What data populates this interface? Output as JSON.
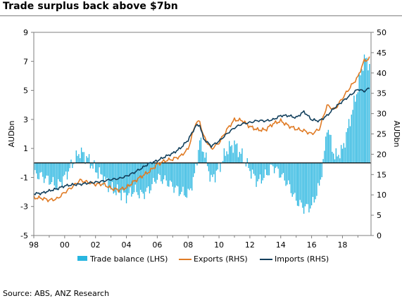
{
  "title": "Trade surplus back above $7bn",
  "source": "Source: ABS, ANZ Research",
  "colors": {
    "trade_balance": "#29b6e0",
    "exports": "#e07b25",
    "imports": "#123f5c",
    "zero_line": "#000000",
    "frame": "#7f7f7f"
  },
  "chart_data": {
    "type": "bar+line",
    "xlabel": "",
    "ylabel_left": "AUDbn",
    "ylabel_right": "AUDbn",
    "x_range": [
      1998,
      2019.75
    ],
    "x_tick_values": [
      1998,
      2000,
      2002,
      2004,
      2006,
      2008,
      2010,
      2012,
      2014,
      2016,
      2018
    ],
    "x_tick_labels": [
      "98",
      "00",
      "02",
      "04",
      "06",
      "08",
      "10",
      "12",
      "14",
      "16",
      "18"
    ],
    "ylim_left": [
      -5,
      9
    ],
    "yticks_left": [
      -5,
      -3,
      -1,
      1,
      3,
      5,
      7,
      9
    ],
    "ytick_labels_left": [
      "-5",
      "-3",
      "-1",
      "1",
      "3",
      "5",
      "7",
      "9"
    ],
    "ylim_right": [
      0,
      50
    ],
    "yticks_right": [
      0,
      5,
      10,
      15,
      20,
      25,
      30,
      35,
      40,
      45,
      50
    ],
    "ytick_labels_right": [
      "0",
      "5",
      "10",
      "15",
      "20",
      "25",
      "30",
      "35",
      "40",
      "45",
      "50"
    ],
    "grid": false,
    "legend_position": "bottom",
    "series": [
      {
        "name": "Trade balance (LHS)",
        "type": "bar",
        "axis": "left",
        "frequency": "monthly",
        "anchors": [
          [
            1998.0,
            -0.8
          ],
          [
            1998.5,
            -0.9
          ],
          [
            1999.0,
            -1.2
          ],
          [
            1999.5,
            -1.6
          ],
          [
            2000.0,
            -1.0
          ],
          [
            2000.6,
            0.1
          ],
          [
            2001.0,
            0.8
          ],
          [
            2001.5,
            0.3
          ],
          [
            2002.0,
            -0.5
          ],
          [
            2002.5,
            -1.0
          ],
          [
            2003.0,
            -1.8
          ],
          [
            2003.5,
            -2.0
          ],
          [
            2004.0,
            -2.3
          ],
          [
            2004.5,
            -1.9
          ],
          [
            2005.0,
            -2.2
          ],
          [
            2005.5,
            -1.8
          ],
          [
            2006.0,
            -1.0
          ],
          [
            2006.5,
            -1.2
          ],
          [
            2007.0,
            -1.6
          ],
          [
            2007.5,
            -2.0
          ],
          [
            2008.0,
            -2.2
          ],
          [
            2008.4,
            -1.0
          ],
          [
            2008.75,
            1.5
          ],
          [
            2009.0,
            0.9
          ],
          [
            2009.5,
            -1.2
          ],
          [
            2010.0,
            -0.4
          ],
          [
            2010.5,
            0.9
          ],
          [
            2011.0,
            1.3
          ],
          [
            2011.5,
            0.5
          ],
          [
            2012.0,
            -0.5
          ],
          [
            2012.5,
            -1.3
          ],
          [
            2013.0,
            -0.9
          ],
          [
            2013.5,
            -0.2
          ],
          [
            2014.0,
            -0.8
          ],
          [
            2014.5,
            -1.5
          ],
          [
            2015.0,
            -2.6
          ],
          [
            2015.5,
            -3.1
          ],
          [
            2016.0,
            -3.0
          ],
          [
            2016.5,
            -1.6
          ],
          [
            2016.8,
            0.3
          ],
          [
            2017.0,
            2.6
          ],
          [
            2017.5,
            0.4
          ],
          [
            2018.0,
            0.9
          ],
          [
            2018.5,
            3.0
          ],
          [
            2019.0,
            5.2
          ],
          [
            2019.4,
            7.2
          ],
          [
            2019.75,
            6.8
          ]
        ],
        "values": []
      },
      {
        "name": "Exports (RHS)",
        "type": "line",
        "axis": "right",
        "frequency": "monthly",
        "anchors": [
          [
            1998.0,
            9.3
          ],
          [
            1998.5,
            9.2
          ],
          [
            1999.0,
            8.7
          ],
          [
            1999.5,
            9.0
          ],
          [
            2000.0,
            10.6
          ],
          [
            2000.5,
            12.0
          ],
          [
            2001.0,
            13.6
          ],
          [
            2001.5,
            13.1
          ],
          [
            2002.0,
            12.6
          ],
          [
            2002.5,
            12.7
          ],
          [
            2003.0,
            11.6
          ],
          [
            2003.5,
            11.2
          ],
          [
            2004.0,
            11.8
          ],
          [
            2004.5,
            13.3
          ],
          [
            2005.0,
            14.6
          ],
          [
            2005.5,
            15.8
          ],
          [
            2006.0,
            17.5
          ],
          [
            2006.5,
            18.4
          ],
          [
            2007.0,
            18.8
          ],
          [
            2007.5,
            19.5
          ],
          [
            2008.0,
            21.3
          ],
          [
            2008.5,
            27.8
          ],
          [
            2008.75,
            28.0
          ],
          [
            2009.0,
            24.5
          ],
          [
            2009.5,
            21.3
          ],
          [
            2010.0,
            22.8
          ],
          [
            2010.5,
            26.0
          ],
          [
            2011.0,
            28.5
          ],
          [
            2011.5,
            28.3
          ],
          [
            2012.0,
            26.8
          ],
          [
            2012.5,
            26.0
          ],
          [
            2013.0,
            26.0
          ],
          [
            2013.5,
            27.5
          ],
          [
            2014.0,
            28.2
          ],
          [
            2014.5,
            27.0
          ],
          [
            2015.0,
            26.2
          ],
          [
            2015.5,
            25.8
          ],
          [
            2016.0,
            25.0
          ],
          [
            2016.5,
            26.2
          ],
          [
            2017.0,
            32.0
          ],
          [
            2017.5,
            31.0
          ],
          [
            2018.0,
            33.8
          ],
          [
            2018.5,
            36.5
          ],
          [
            2019.0,
            39.0
          ],
          [
            2019.4,
            43.0
          ],
          [
            2019.75,
            43.5
          ]
        ],
        "values": []
      },
      {
        "name": "Imports (RHS)",
        "type": "line",
        "axis": "right",
        "frequency": "monthly",
        "anchors": [
          [
            1998.0,
            10.3
          ],
          [
            1998.5,
            10.4
          ],
          [
            1999.0,
            11.0
          ],
          [
            1999.5,
            11.5
          ],
          [
            2000.0,
            12.2
          ],
          [
            2000.5,
            12.5
          ],
          [
            2001.0,
            12.6
          ],
          [
            2001.5,
            12.9
          ],
          [
            2002.0,
            13.1
          ],
          [
            2002.5,
            13.4
          ],
          [
            2003.0,
            13.8
          ],
          [
            2003.5,
            14.0
          ],
          [
            2004.0,
            14.6
          ],
          [
            2004.5,
            15.5
          ],
          [
            2005.0,
            16.6
          ],
          [
            2005.5,
            17.8
          ],
          [
            2006.0,
            18.4
          ],
          [
            2006.5,
            19.4
          ],
          [
            2007.0,
            20.2
          ],
          [
            2007.5,
            21.5
          ],
          [
            2008.0,
            23.5
          ],
          [
            2008.5,
            27.0
          ],
          [
            2008.75,
            27.2
          ],
          [
            2009.0,
            23.8
          ],
          [
            2009.5,
            22.0
          ],
          [
            2010.0,
            23.2
          ],
          [
            2010.5,
            25.0
          ],
          [
            2011.0,
            26.5
          ],
          [
            2011.5,
            27.5
          ],
          [
            2012.0,
            27.8
          ],
          [
            2012.5,
            28.3
          ],
          [
            2013.0,
            28.2
          ],
          [
            2013.5,
            28.5
          ],
          [
            2014.0,
            29.5
          ],
          [
            2014.5,
            29.5
          ],
          [
            2015.0,
            29.0
          ],
          [
            2015.5,
            30.5
          ],
          [
            2016.0,
            28.5
          ],
          [
            2016.5,
            28.2
          ],
          [
            2017.0,
            29.5
          ],
          [
            2017.5,
            31.5
          ],
          [
            2018.0,
            33.0
          ],
          [
            2018.5,
            34.5
          ],
          [
            2019.0,
            36.0
          ],
          [
            2019.4,
            35.5
          ],
          [
            2019.75,
            36.3
          ]
        ],
        "values": []
      }
    ]
  }
}
